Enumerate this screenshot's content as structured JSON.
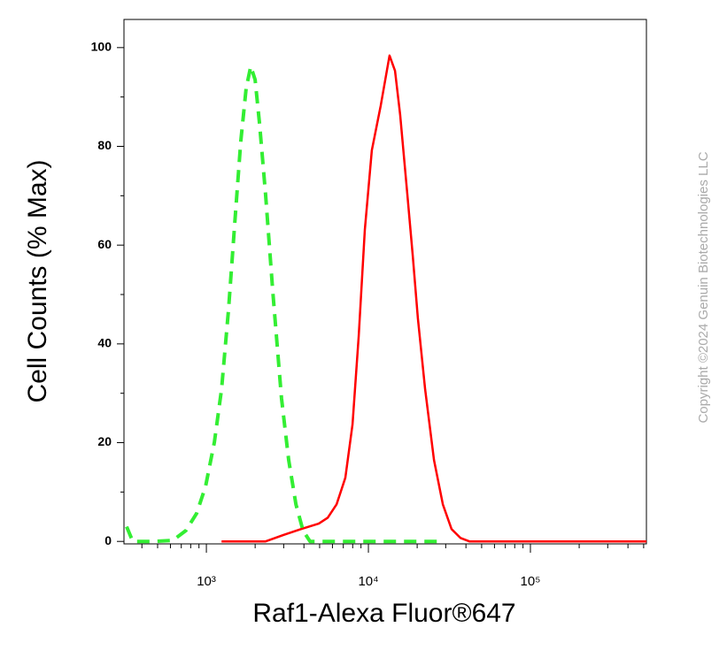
{
  "chart_data": {
    "type": "line",
    "xlabel": "Raf1-Alexa Fluor®647",
    "ylabel": "Cell Counts (% Max)",
    "annotation": "Copyright ©2024 Genuin Biotechnologies LLC",
    "xscale": "log",
    "xlim": [
      310,
      520000
    ],
    "ylim": [
      -0.5,
      105.7
    ],
    "xticks": [
      {
        "value": 1000,
        "label": "10³"
      },
      {
        "value": 10000,
        "label": "10⁴"
      },
      {
        "value": 100000,
        "label": "10⁵"
      }
    ],
    "xminorticks": [
      400,
      500,
      600,
      700,
      800,
      900,
      2000,
      3000,
      4000,
      5000,
      6000,
      7000,
      8000,
      9000,
      20000,
      30000,
      40000,
      50000,
      60000,
      70000,
      80000,
      90000,
      200000,
      300000,
      400000,
      500000
    ],
    "yticks": [
      0,
      20,
      40,
      60,
      80,
      100
    ],
    "yminorticks": [
      10,
      30,
      50,
      70,
      90
    ],
    "series": [
      {
        "color": "#ff0000",
        "dash": "solid",
        "x": [
          1240,
          2320,
          2990,
          3850,
          4940,
          5610,
          6360,
          7210,
          7980,
          8720,
          9510,
          10500,
          11900,
          13500,
          14600,
          15700,
          17400,
          18800,
          20200,
          22400,
          25400,
          28800,
          32600,
          37000,
          42000,
          101000,
          520000
        ],
        "values": [
          0,
          0,
          1.3,
          2.5,
          3.6,
          4.8,
          7.5,
          12.9,
          23.7,
          41.6,
          63.1,
          79.2,
          88.2,
          98.4,
          95.3,
          86.4,
          70.3,
          57.7,
          45.2,
          30.8,
          16.5,
          7.5,
          2.5,
          0.7,
          0,
          0,
          0
        ]
      },
      {
        "color": "#33ee33",
        "dash": "dashed",
        "x": [
          322,
          351,
          482,
          620,
          748,
          871,
          988,
          1120,
          1240,
          1370,
          1500,
          1630,
          1760,
          1880,
          2000,
          2130,
          2320,
          2570,
          2910,
          3220,
          3570,
          3950,
          4360,
          15300,
          28800
        ],
        "values": [
          3.0,
          0,
          0,
          0.2,
          2.2,
          5.7,
          11.1,
          20.1,
          30.8,
          47.0,
          64.9,
          81.0,
          91.8,
          96.2,
          93.5,
          84.6,
          70.3,
          50.5,
          29.0,
          16.5,
          7.5,
          2.2,
          0,
          0,
          0
        ]
      }
    ]
  }
}
